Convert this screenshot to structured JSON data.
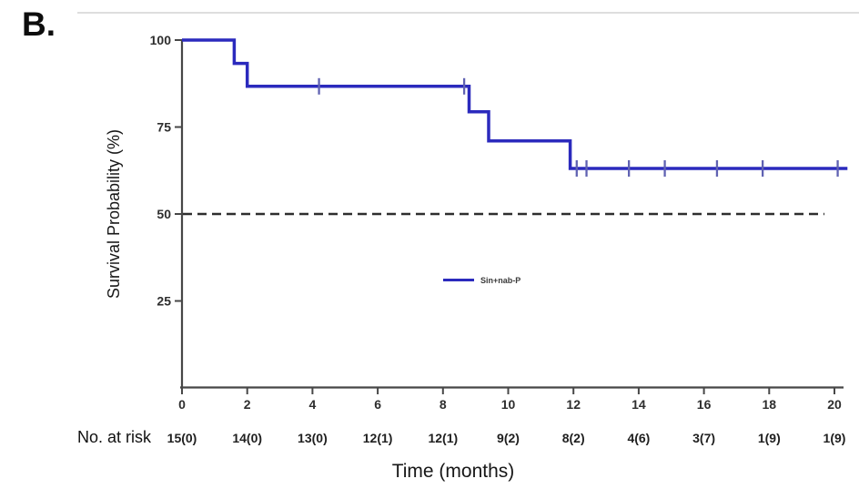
{
  "panel_label": "B.",
  "colors": {
    "curve_blue": "#2b2abd",
    "censor_blue": "#6062b2",
    "reference_dash": "#2e2e2e",
    "axis": "#474747",
    "top_rule": "#dedede"
  },
  "chart_data": {
    "type": "line",
    "subtype": "kaplan-meier-step",
    "title": "",
    "xlabel": "Time (months)",
    "ylabel": "Survival Probability (%)",
    "xlim": [
      0,
      20
    ],
    "ylim": [
      0,
      100
    ],
    "x_ticks": [
      0,
      2,
      4,
      6,
      8,
      10,
      12,
      14,
      16,
      18,
      20
    ],
    "y_ticks": [
      25,
      50,
      75,
      100
    ],
    "grid": false,
    "legend": {
      "position": "center-of-plot",
      "entries": [
        {
          "label": "Sin+nab-P",
          "color": "#2b2abd"
        }
      ]
    },
    "reference_line": {
      "y": 50,
      "style": "dashed",
      "color": "#2e2e2e"
    },
    "series": [
      {
        "name": "Sin+nab-P",
        "color": "#2b2abd",
        "step_points": [
          [
            0,
            100
          ],
          [
            1.6,
            100
          ],
          [
            1.6,
            93.3
          ],
          [
            2.0,
            93.3
          ],
          [
            2.0,
            86.7
          ],
          [
            8.8,
            86.7
          ],
          [
            8.8,
            79.4
          ],
          [
            9.4,
            79.4
          ],
          [
            9.4,
            71.0
          ],
          [
            11.9,
            71.0
          ],
          [
            11.9,
            63.1
          ],
          [
            20.4,
            63.1
          ]
        ],
        "censor_marks": [
          [
            4.2,
            86.7
          ],
          [
            8.65,
            86.7
          ],
          [
            12.1,
            63.1
          ],
          [
            12.4,
            63.1
          ],
          [
            13.7,
            63.1
          ],
          [
            14.8,
            63.1
          ],
          [
            16.4,
            63.1
          ],
          [
            17.8,
            63.1
          ],
          [
            20.1,
            63.1
          ]
        ]
      }
    ],
    "risk_table": {
      "label": "No. at risk",
      "times": [
        0,
        2,
        4,
        6,
        8,
        10,
        12,
        14,
        16,
        18,
        20
      ],
      "values": [
        "15(0)",
        "14(0)",
        "13(0)",
        "12(1)",
        "12(1)",
        "9(2)",
        "8(2)",
        "4(6)",
        "3(7)",
        "1(9)",
        "1(9)"
      ]
    }
  }
}
